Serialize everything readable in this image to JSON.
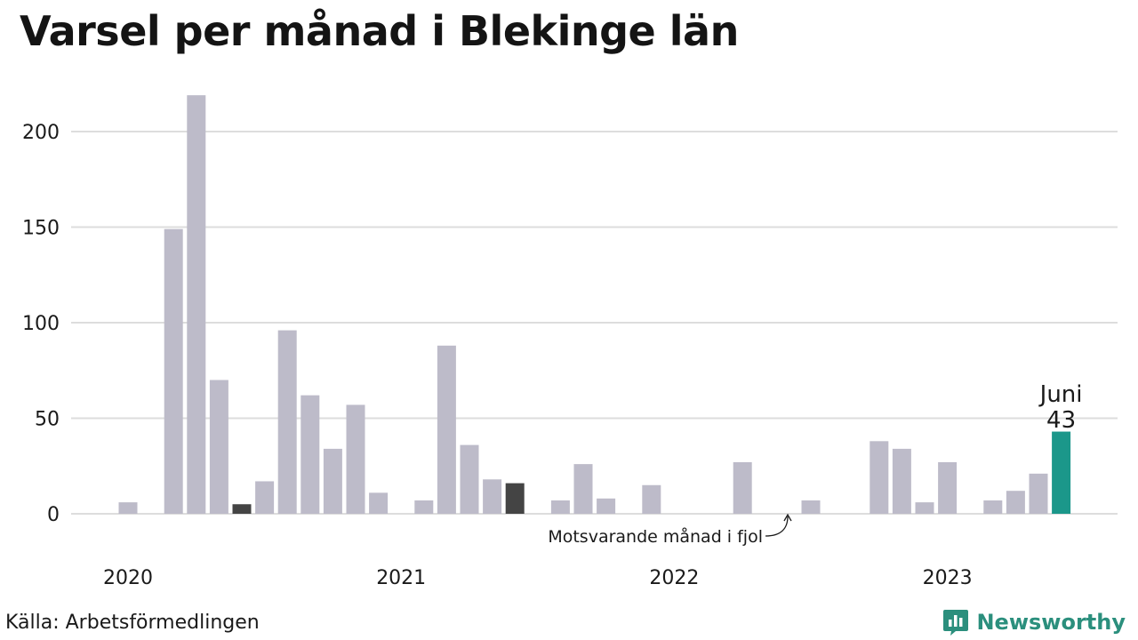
{
  "title": "Varsel per månad i Blekinge län",
  "source": "Källa: Arbetsförmedlingen",
  "brand": {
    "name": "Newsworthy",
    "icon": "newsworthy-logo-icon",
    "color": "#2b8f7d"
  },
  "colors": {
    "default_bar": "#bdbbc9",
    "comparison_bar": "#444444",
    "current_bar": "#1b978a",
    "grid": "#dddddd"
  },
  "chart_data": {
    "type": "bar",
    "title": "Varsel per månad i Blekinge län",
    "x": [
      "2020-01",
      "2020-02",
      "2020-03",
      "2020-04",
      "2020-05",
      "2020-06",
      "2020-07",
      "2020-08",
      "2020-09",
      "2020-10",
      "2020-11",
      "2020-12",
      "2021-01",
      "2021-02",
      "2021-03",
      "2021-04",
      "2021-05",
      "2021-06",
      "2021-07",
      "2021-08",
      "2021-09",
      "2021-10",
      "2021-11",
      "2021-12",
      "2022-01",
      "2022-02",
      "2022-03",
      "2022-04",
      "2022-05",
      "2022-06",
      "2022-07",
      "2022-08",
      "2022-09",
      "2022-10",
      "2022-11",
      "2022-12",
      "2023-01",
      "2023-02",
      "2023-03",
      "2023-04",
      "2023-05",
      "2023-06"
    ],
    "values": [
      6,
      0,
      149,
      219,
      70,
      5,
      17,
      96,
      62,
      34,
      57,
      11,
      0,
      7,
      88,
      36,
      18,
      16,
      0,
      7,
      26,
      8,
      0,
      15,
      0,
      0,
      0,
      27,
      0,
      0,
      7,
      0,
      0,
      38,
      34,
      6,
      27,
      0,
      7,
      12,
      21,
      43
    ],
    "highlight": {
      "comparison_months": [
        "2020-06",
        "2021-06"
      ],
      "current_month": "2023-06"
    },
    "xticks": [
      {
        "label": "2020",
        "at": "2020-01"
      },
      {
        "label": "2021",
        "at": "2021-01"
      },
      {
        "label": "2022",
        "at": "2022-01"
      },
      {
        "label": "2023",
        "at": "2023-01"
      }
    ],
    "yticks": [
      0,
      50,
      100,
      150,
      200
    ],
    "ylim": [
      0,
      225
    ],
    "annotations": {
      "current_label": "Juni",
      "current_value": "43",
      "comparison_note": "Motsvarande månad i fjol"
    },
    "grid": true
  }
}
